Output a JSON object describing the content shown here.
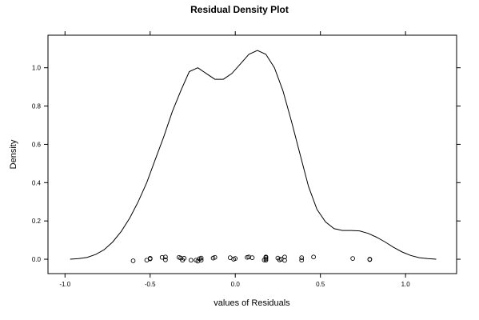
{
  "chart_data": {
    "type": "line",
    "title": "Residual Density Plot",
    "xlabel": "values of Residuals",
    "ylabel": "Density",
    "xlim": [
      -1.1,
      1.3
    ],
    "ylim": [
      -0.075,
      1.17
    ],
    "x_ticks": [
      -1.0,
      -0.5,
      0.0,
      0.5,
      1.0
    ],
    "x_tick_labels": [
      "-1.0",
      "-0.5",
      "0.0",
      "0.5",
      "1.0"
    ],
    "y_ticks": [
      0.0,
      0.2,
      0.4,
      0.6,
      0.8,
      1.0
    ],
    "y_tick_labels": [
      "0.0",
      "0.2",
      "0.4",
      "0.6",
      "0.8",
      "1.0"
    ],
    "grid": false,
    "line_color": "#000000",
    "series": [
      {
        "x": [
          -0.97,
          -0.92,
          -0.87,
          -0.82,
          -0.77,
          -0.72,
          -0.67,
          -0.62,
          -0.57,
          -0.52,
          -0.47,
          -0.42,
          -0.37,
          -0.32,
          -0.27,
          -0.22,
          -0.17,
          -0.12,
          -0.07,
          -0.02,
          0.03,
          0.08,
          0.13,
          0.18,
          0.23,
          0.28,
          0.33,
          0.38,
          0.43,
          0.48,
          0.53,
          0.58,
          0.63,
          0.68,
          0.73,
          0.78,
          0.83,
          0.88,
          0.93,
          0.98,
          1.03,
          1.08,
          1.13,
          1.18
        ],
        "y": [
          0.0,
          0.003,
          0.01,
          0.025,
          0.05,
          0.09,
          0.145,
          0.215,
          0.3,
          0.4,
          0.52,
          0.64,
          0.77,
          0.88,
          0.98,
          1.0,
          0.97,
          0.94,
          0.94,
          0.97,
          1.02,
          1.07,
          1.09,
          1.07,
          1.0,
          0.88,
          0.72,
          0.55,
          0.38,
          0.26,
          0.195,
          0.16,
          0.15,
          0.15,
          0.148,
          0.135,
          0.115,
          0.09,
          0.062,
          0.038,
          0.02,
          0.008,
          0.003,
          0.0
        ]
      }
    ],
    "rug_points": {
      "x": [
        -0.6,
        -0.52,
        -0.5,
        -0.5,
        -0.43,
        -0.41,
        -0.41,
        -0.33,
        -0.32,
        -0.31,
        -0.3,
        -0.26,
        -0.23,
        -0.22,
        -0.21,
        -0.2,
        -0.2,
        -0.13,
        -0.12,
        -0.03,
        -0.01,
        0.0,
        0.07,
        0.08,
        0.1,
        0.17,
        0.18,
        0.18,
        0.18,
        0.18,
        0.25,
        0.26,
        0.27,
        0.29,
        0.29,
        0.39,
        0.39,
        0.46,
        0.69,
        0.79,
        0.79
      ],
      "y": [
        -0.008,
        -0.005,
        0.002,
        0.005,
        0.01,
        -0.003,
        0.012,
        0.01,
        0.006,
        -0.005,
        0.005,
        -0.005,
        -0.005,
        -0.01,
        0.003,
        -0.005,
        0.006,
        0.006,
        0.01,
        0.008,
        0.0,
        0.004,
        0.01,
        0.012,
        0.008,
        -0.004,
        0.012,
        0.009,
        0.002,
        -0.005,
        0.006,
        -0.003,
        0.0,
        0.012,
        -0.006,
        -0.005,
        0.008,
        0.012,
        0.004,
        0.0,
        -0.002
      ]
    }
  }
}
